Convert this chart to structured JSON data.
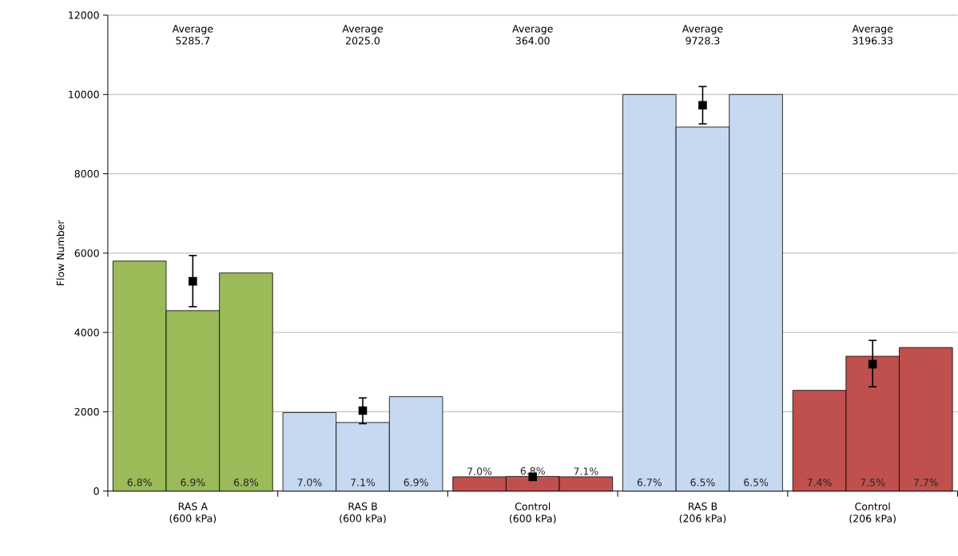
{
  "chart_data": {
    "type": "bar",
    "ylabel": "Flow Number",
    "categories": [
      "RAS A (600 kPa)",
      "RAS B (600 kPa)",
      "Control (600 kPa)",
      "RAS B (206 kPa)",
      "Control (206 kPa)"
    ],
    "series": [
      {
        "colors": [
          "#9bbb59",
          "#c6d9f0",
          "#c0504d",
          "#c6d9f0",
          "#c0504d"
        ],
        "values": [
          5800,
          1980,
          360,
          10000,
          2540
        ]
      },
      {
        "colors": [
          "#9bbb59",
          "#c6d9f0",
          "#c0504d",
          "#c6d9f0",
          "#c0504d"
        ],
        "values": [
          4550,
          1730,
          370,
          9180,
          3400
        ]
      },
      {
        "colors": [
          "#9bbb59",
          "#c6d9f0",
          "#c0504d",
          "#c6d9f0",
          "#c0504d"
        ],
        "values": [
          5500,
          2380,
          360,
          10000,
          3620
        ]
      },
      {
        "type": "scatter",
        "color": "#000000",
        "x": [
          "RAS A (600 kPa)",
          "RAS B (600 kPa)",
          "Control (600 kPa)",
          "RAS B (206 kPa)",
          "Control (206 kPa)"
        ],
        "values": [
          5290,
          2030,
          360,
          9730,
          3200
        ],
        "errors": [
          [
            4650,
            5940
          ],
          [
            1700,
            2350
          ],
          null,
          [
            9260,
            10200
          ],
          [
            2630,
            3800
          ]
        ]
      }
    ],
    "marker": "square",
    "annotations": [
      "Average 5285.7",
      "Average 2025.0",
      "Average 364.00",
      "Average 9728.3",
      "Average 3196.33",
      "6.8%",
      "6.9%",
      "6.8%",
      "7.0%",
      "7.1%",
      "6.9%",
      "7.0%",
      "6.8%",
      "7.1%",
      "6.7%",
      "6.5%",
      "6.5%",
      "7.4%",
      "7.5%",
      "7.7%"
    ],
    "ylim": [
      0,
      12000
    ],
    "yticks": [
      0,
      2000,
      4000,
      6000,
      8000,
      10000,
      12000
    ],
    "grid": "y"
  }
}
